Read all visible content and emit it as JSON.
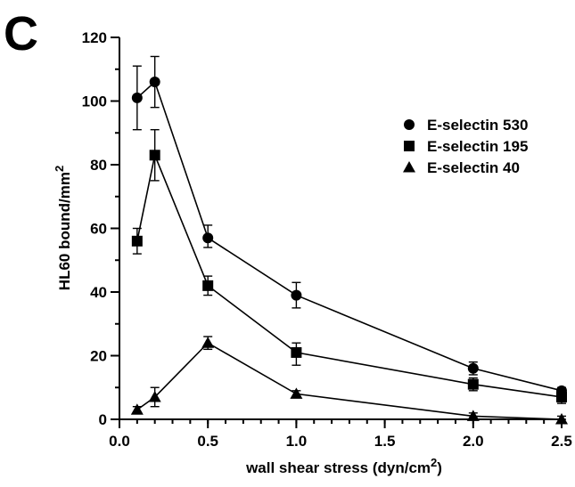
{
  "panel_label": "C",
  "chart_data": {
    "type": "line",
    "xlabel": "wall shear stress (dyn/cm",
    "xlabel_sup": "2",
    "xlabel_close": ")",
    "ylabel": "HL60 bound/mm",
    "ylabel_sup": "2",
    "xlim": [
      0,
      2.5
    ],
    "ylim": [
      0,
      120
    ],
    "xticks": [
      0,
      0.5,
      1,
      1.5,
      2,
      2.5
    ],
    "xtick_labels": [
      "0.0",
      "0.5",
      "1.0",
      "1.5",
      "2.0",
      "2.5"
    ],
    "yticks": [
      0,
      20,
      40,
      60,
      80,
      100,
      120
    ],
    "ytick_labels": [
      "0",
      "20",
      "40",
      "60",
      "80",
      "100",
      "120"
    ],
    "x_minor_step": 0.1,
    "y_minor_step": 10,
    "grid": false,
    "legend_position": "top-right",
    "series": [
      {
        "name": "E-selectin 530",
        "marker": "circle",
        "x": [
          0.1,
          0.2,
          0.5,
          1.0,
          2.0,
          2.5
        ],
        "y": [
          101,
          106,
          57,
          39,
          16,
          9
        ],
        "err_low": [
          91,
          98,
          54,
          35,
          14,
          7
        ],
        "err_high": [
          111,
          114,
          61,
          43,
          18,
          10
        ]
      },
      {
        "name": "E-selectin 195",
        "marker": "square",
        "x": [
          0.1,
          0.2,
          0.5,
          1.0,
          2.0,
          2.5
        ],
        "y": [
          56,
          83,
          42,
          21,
          11,
          7
        ],
        "err_low": [
          52,
          75,
          39,
          17,
          9,
          5
        ],
        "err_high": [
          60,
          91,
          45,
          24,
          13,
          9
        ]
      },
      {
        "name": "E-selectin 40",
        "marker": "triangle",
        "x": [
          0.1,
          0.2,
          0.5,
          1.0,
          2.0,
          2.5
        ],
        "y": [
          3,
          7,
          24,
          8,
          1,
          0
        ],
        "err_low": [
          2,
          4,
          22,
          7,
          0,
          0
        ],
        "err_high": [
          4,
          10,
          26,
          9,
          2,
          1
        ]
      }
    ]
  }
}
